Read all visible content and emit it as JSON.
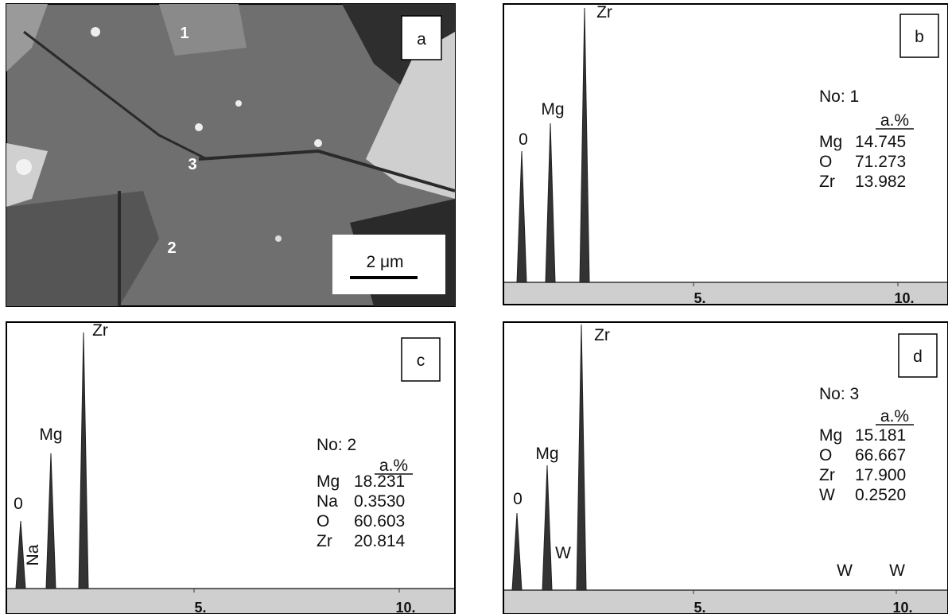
{
  "panels": [
    {
      "label": "a",
      "points": [
        "1",
        "2",
        "3"
      ],
      "scale_bar": "2 μm"
    },
    {
      "label": "b",
      "peak_labels": [
        "0",
        "Mg",
        "Zr"
      ],
      "xticks": [
        "5.",
        "10."
      ],
      "analysis": {
        "number": "No: 1",
        "unit": "a.%",
        "rows": [
          [
            "Mg",
            "14.745"
          ],
          [
            "O",
            "71.273"
          ],
          [
            "Zr",
            "13.982"
          ]
        ]
      }
    },
    {
      "label": "c",
      "peak_labels": [
        "0",
        "Mg",
        "Zr",
        "Na"
      ],
      "xticks": [
        "5.",
        "10."
      ],
      "analysis": {
        "number": "No: 2",
        "unit": "a.%",
        "rows": [
          [
            "Mg",
            "18.231"
          ],
          [
            "Na",
            "0.3530"
          ],
          [
            "O",
            "60.603"
          ],
          [
            "Zr",
            "20.814"
          ]
        ]
      }
    },
    {
      "label": "d",
      "peak_labels": [
        "0",
        "Mg",
        "Zr",
        "W",
        "W",
        "W"
      ],
      "xticks": [
        "5.",
        "10."
      ],
      "analysis": {
        "number": "No: 3",
        "unit": "a.%",
        "rows": [
          [
            "Mg",
            "15.181"
          ],
          [
            "O",
            "66.667"
          ],
          [
            "Zr",
            "17.900"
          ],
          [
            "W",
            "0.2520"
          ]
        ]
      }
    }
  ]
}
